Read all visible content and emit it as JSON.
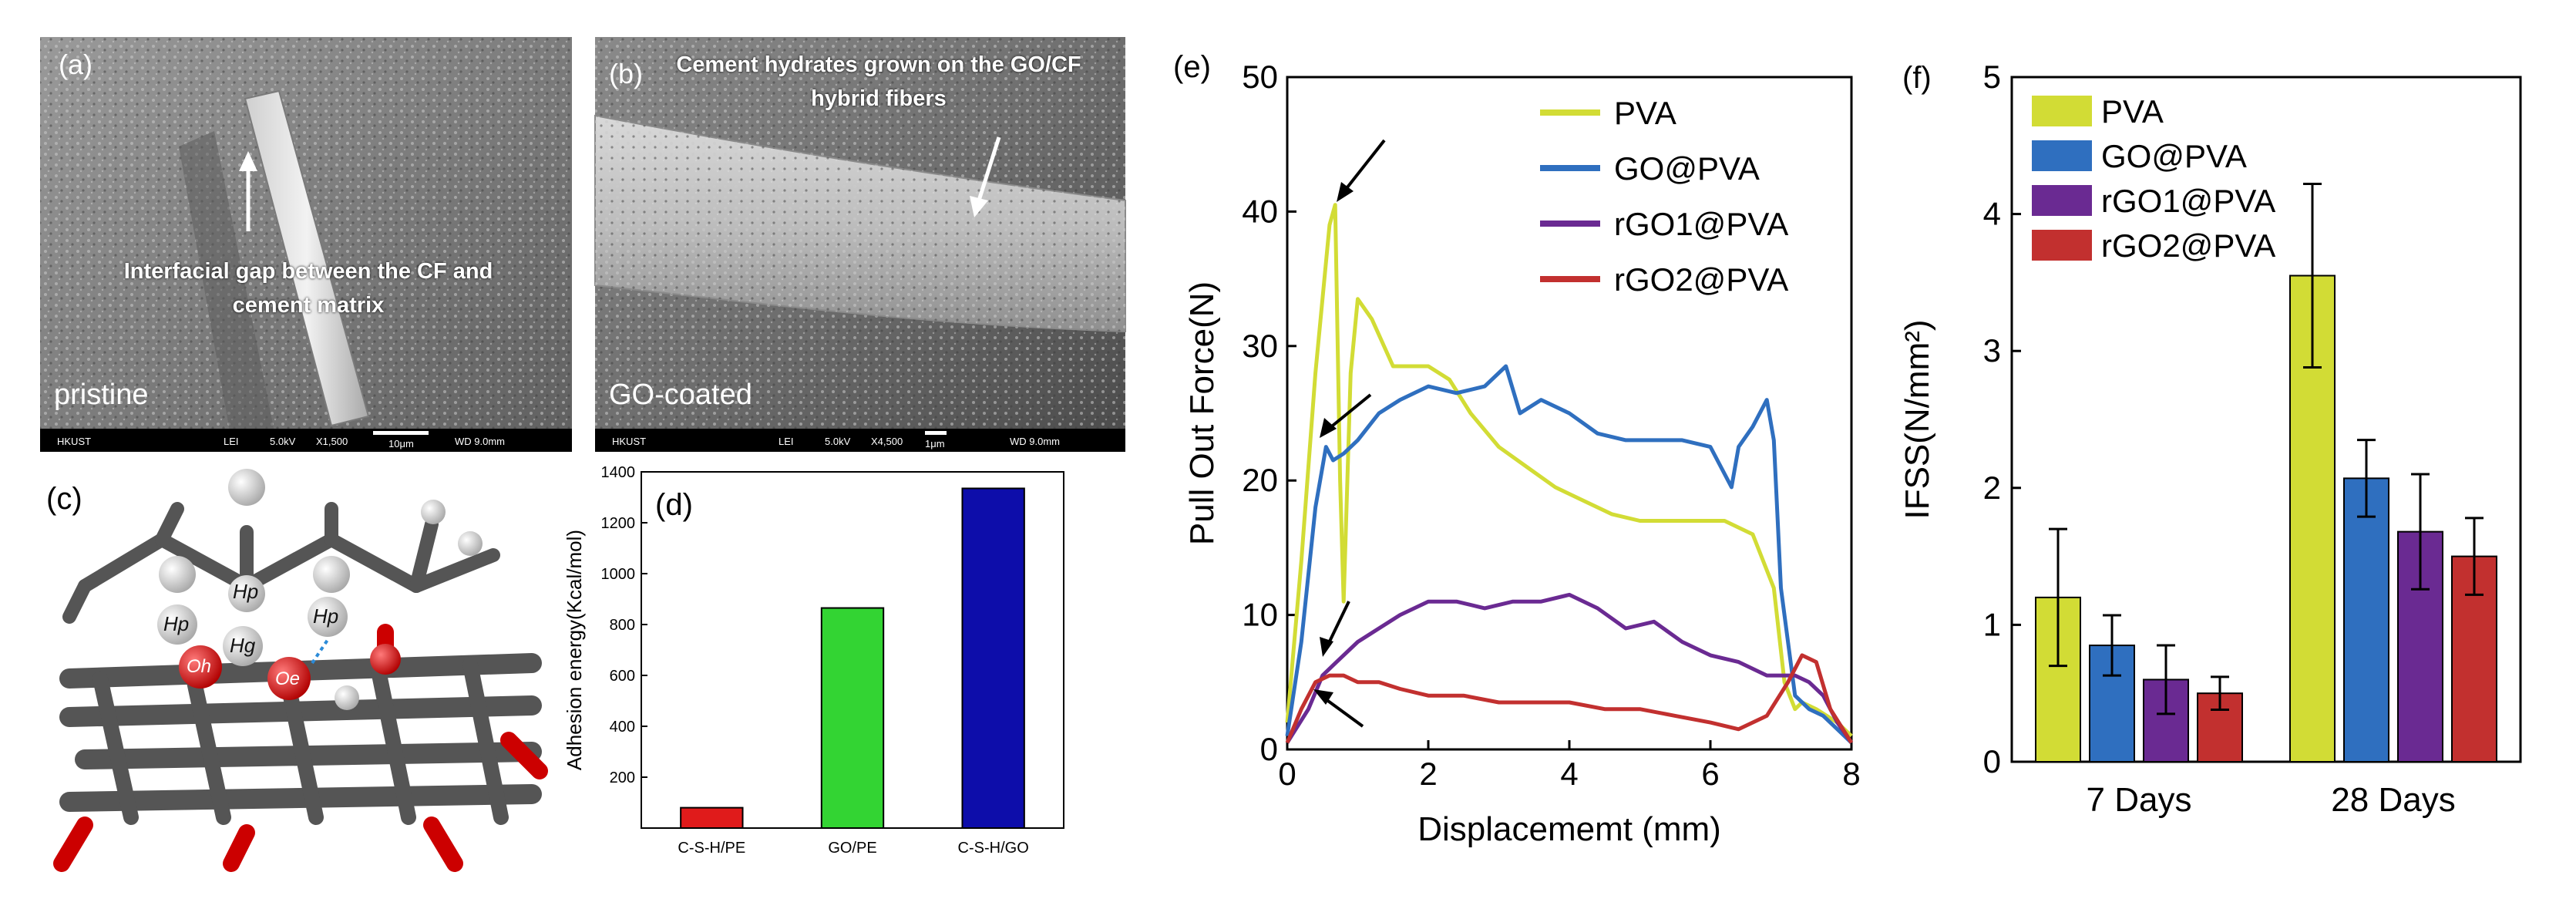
{
  "panels": {
    "a": {
      "label": "(a)",
      "annotation": "Interfacial gap between the CF and cement matrix",
      "corner_text": "pristine",
      "scalebar": {
        "left": "HKUST",
        "mode": "LEI",
        "kv": "5.0kV",
        "mag": "X1,500",
        "scale": "10μm",
        "wd": "WD 9.0mm"
      }
    },
    "b": {
      "label": "(b)",
      "annotation": "Cement hydrates grown on the GO/CF hybrid fibers",
      "corner_text": "GO-coated",
      "scalebar": {
        "left": "HKUST",
        "mode": "LEI",
        "kv": "5.0kV",
        "mag": "X4,500",
        "scale": "1μm",
        "wd": "WD 9.0mm"
      }
    },
    "c": {
      "label": "(c)",
      "atoms": [
        "Hp",
        "Hp",
        "Hp",
        "Hg",
        "Oh",
        "Oe"
      ]
    }
  },
  "colors": {
    "PVA": "#d2dc35",
    "GO@PVA": "#2f6fbf",
    "rGO1@PVA": "#6a2a92",
    "rGO2@PVA": "#c2302f",
    "bar_d_1": "#e01b1b",
    "bar_d_2": "#33d433",
    "bar_d_3": "#0d0daa"
  },
  "chart_data": [
    {
      "panel": "(d)",
      "type": "bar",
      "categories": [
        "C-S-H/PE",
        "GO/PE",
        "C-S-H/GO"
      ],
      "values": [
        80,
        865,
        1335
      ],
      "ylabel": "Adhesion energy(Kcal/mol)",
      "ylim": [
        0,
        1400
      ],
      "yticks": [
        200,
        400,
        600,
        800,
        1000,
        1200,
        1400
      ]
    },
    {
      "panel": "(e)",
      "type": "line",
      "xlabel": "Displacememt (mm)",
      "ylabel": "Pull Out Force(N)",
      "xlim": [
        0,
        8
      ],
      "ylim": [
        0,
        50
      ],
      "xticks": [
        0,
        2,
        4,
        6,
        8
      ],
      "yticks": [
        0,
        10,
        20,
        30,
        40,
        50
      ],
      "legend": "top-right",
      "series": [
        {
          "name": "PVA",
          "x": [
            0,
            0.2,
            0.4,
            0.6,
            0.68,
            0.75,
            0.8,
            0.9,
            1.0,
            1.2,
            1.5,
            2.0,
            2.3,
            2.6,
            3.0,
            3.4,
            3.8,
            4.2,
            4.6,
            5.0,
            5.4,
            5.8,
            6.2,
            6.6,
            6.9,
            7.05,
            7.2,
            7.3,
            7.5,
            7.8,
            8.0
          ],
          "y": [
            2,
            14,
            28,
            39,
            40.5,
            20,
            11,
            28,
            33.5,
            32,
            28.5,
            28.5,
            27.5,
            25,
            22.5,
            21,
            19.5,
            18.5,
            17.5,
            17,
            17,
            17,
            17,
            16,
            12,
            5,
            3,
            3.5,
            3,
            2,
            1
          ]
        },
        {
          "name": "GO@PVA",
          "x": [
            0,
            0.2,
            0.4,
            0.55,
            0.65,
            0.8,
            1.0,
            1.3,
            1.6,
            2.0,
            2.4,
            2.8,
            3.1,
            3.3,
            3.6,
            4.0,
            4.4,
            4.8,
            5.2,
            5.6,
            6.0,
            6.3,
            6.4,
            6.6,
            6.8,
            6.9,
            7.0,
            7.2,
            7.4,
            7.6,
            7.8,
            8.0
          ],
          "y": [
            1,
            8,
            18,
            22.5,
            21.5,
            22,
            23,
            25,
            26,
            27,
            26.5,
            27,
            28.5,
            25,
            26,
            25,
            23.5,
            23,
            23,
            23,
            22.5,
            19.5,
            22.5,
            24,
            26,
            23,
            12,
            4,
            3,
            2.5,
            1.5,
            0.5
          ]
        },
        {
          "name": "rGO1@PVA",
          "x": [
            0,
            0.3,
            0.5,
            0.7,
            1.0,
            1.3,
            1.6,
            2.0,
            2.4,
            2.8,
            3.2,
            3.6,
            4.0,
            4.4,
            4.8,
            5.2,
            5.6,
            6.0,
            6.4,
            6.8,
            7.0,
            7.2,
            7.4,
            7.6,
            7.8,
            8.0
          ],
          "y": [
            0.5,
            3,
            5.5,
            6.5,
            8,
            9,
            10,
            11,
            11,
            10.5,
            11,
            11,
            11.5,
            10.5,
            9,
            9.5,
            8,
            7,
            6.5,
            5.5,
            5.5,
            5.5,
            5,
            4,
            2,
            0.5
          ]
        },
        {
          "name": "rGO2@PVA",
          "x": [
            0,
            0.2,
            0.4,
            0.6,
            0.8,
            1.0,
            1.3,
            1.6,
            2.0,
            2.5,
            3.0,
            3.5,
            4.0,
            4.5,
            5.0,
            5.5,
            6.0,
            6.4,
            6.8,
            7.1,
            7.3,
            7.5,
            7.7,
            8.0
          ],
          "y": [
            0.5,
            3,
            5,
            5.5,
            5.5,
            5,
            5,
            4.5,
            4,
            4,
            3.5,
            3.5,
            3.5,
            3,
            3,
            2.5,
            2,
            1.5,
            2.5,
            5,
            7,
            6.5,
            3,
            0.5
          ]
        }
      ]
    },
    {
      "panel": "(f)",
      "type": "bar",
      "categories": [
        "7 Days",
        "28 Days"
      ],
      "ylabel": "IFSS(N/mm²)",
      "ylim": [
        0,
        5
      ],
      "yticks": [
        0,
        1,
        2,
        3,
        4,
        5
      ],
      "legend": "top-left",
      "series": [
        {
          "name": "PVA",
          "values": [
            1.2,
            3.55
          ],
          "errors": [
            0.5,
            0.67
          ]
        },
        {
          "name": "GO@PVA",
          "values": [
            0.85,
            2.07
          ],
          "errors": [
            0.22,
            0.28
          ]
        },
        {
          "name": "rGO1@PVA",
          "values": [
            0.6,
            1.68
          ],
          "errors": [
            0.25,
            0.42
          ]
        },
        {
          "name": "rGO2@PVA",
          "values": [
            0.5,
            1.5
          ],
          "errors": [
            0.12,
            0.28
          ]
        }
      ]
    }
  ]
}
